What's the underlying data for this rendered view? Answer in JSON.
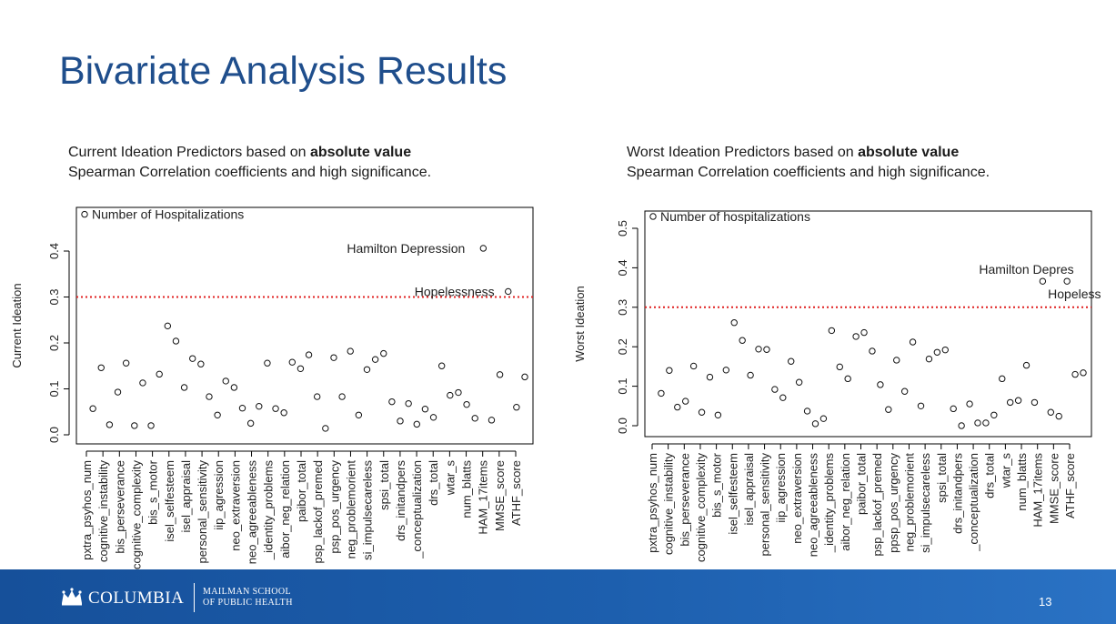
{
  "slide": {
    "title": "Bivariate Analysis Results",
    "page_number": "13"
  },
  "captions": {
    "left": {
      "line1_prefix": "Current Ideation Predictors based on ",
      "line1_bold": "absolute value",
      "line2": "Spearman Correlation coefficients and high significance."
    },
    "right": {
      "line1_prefix": "Worst Ideation Predictors based on ",
      "line1_bold": "absolute value",
      "line2": "Spearman Correlation coefficients and high significance."
    }
  },
  "footer": {
    "brand": "COLUMBIA",
    "school_line1": "MAILMAN SCHOOL",
    "school_line2": "OF PUBLIC HEALTH",
    "crown_icon": "columbia-crown-icon",
    "color_start": "#16509a",
    "color_end": "#2a72c4"
  },
  "colors": {
    "title": "#1f4e8c",
    "threshold_line": "#e02020",
    "points": "#111111"
  },
  "chart_data": [
    {
      "type": "scatter",
      "title": "",
      "xlabel": "",
      "ylabel": "Current Ideation",
      "ylim": [
        0,
        0.48
      ],
      "yticks": [
        "0.0",
        "0.1",
        "0.2",
        "0.3",
        "0.4"
      ],
      "threshold": 0.3,
      "tick_labels": [
        "pxtra_psyhos_num",
        "cognitive_instability",
        "bis_perseverance",
        "cognitive_complexity",
        "bis_s_motor",
        "isel_selfesteem",
        "isel_appraisal",
        "personal_sensitivity",
        "iip_agression",
        "neo_extraversion",
        "neo_agreeableness",
        "_identity_problems",
        "aibor_neg_relation",
        "paibor_total",
        "psp_lackof_premed",
        "psp_pos_urgency",
        "neg_problemorient",
        "si_impulsecareless",
        "spsi_total",
        "drs_initandpers",
        "_conceptualization",
        "drs_total",
        "wtar_s",
        "num_blatts",
        "HAM_17items",
        "MMSE_score",
        "ATHF_score"
      ],
      "values": [
        0.48,
        0.057,
        0.146,
        0.022,
        0.093,
        0.156,
        0.02,
        0.113,
        0.02,
        0.132,
        0.237,
        0.204,
        0.103,
        0.166,
        0.154,
        0.083,
        0.043,
        0.117,
        0.103,
        0.058,
        0.025,
        0.062,
        0.156,
        0.057,
        0.048,
        0.158,
        0.144,
        0.174,
        0.083,
        0.014,
        0.168,
        0.083,
        0.182,
        0.043,
        0.142,
        0.164,
        0.177,
        0.072,
        0.03,
        0.068,
        0.023,
        0.056,
        0.038,
        0.15,
        0.086,
        0.092,
        0.066,
        0.036,
        0.406,
        0.032,
        0.131,
        0.312,
        0.06,
        0.126
      ],
      "annotations": [
        {
          "text": "Number of Hospitalizations",
          "index": 0
        },
        {
          "text": "Hamilton Depression",
          "index": 48
        },
        {
          "text": "Hopelessness",
          "index": 51
        }
      ],
      "grid": false,
      "legend": "none"
    },
    {
      "type": "scatter",
      "title": "",
      "xlabel": "",
      "ylabel": "Worst Ideation",
      "ylim": [
        0,
        0.53
      ],
      "yticks": [
        "0.0",
        "0.1",
        "0.2",
        "0.3",
        "0.4",
        "0.5"
      ],
      "threshold": 0.3,
      "tick_labels": [
        "pxtra_psyhos_num",
        "cognitive_instability",
        "bis_perseverance",
        "cognitive_complexity",
        "bis_s_motor",
        "isel_selfesteem",
        "isel_appraisal",
        "personal_sensitivity",
        "iip_agression",
        "neo_extraversion",
        "neo_agreeableness",
        "_identity_problems",
        "aibor_neg_relation",
        "paibor_total",
        "psp_lackof_premed",
        "ppsp_pos_urgency",
        "neg_problemorient",
        "si_impulsecareless",
        "spsi_total",
        "drs_initandpers",
        "_conceptualization",
        "drs_total",
        "wtar_s",
        "num_blatts",
        "HAM_17items",
        "MMSE_score",
        "ATHF_score"
      ],
      "values": [
        0.53,
        0.082,
        0.14,
        0.047,
        0.062,
        0.151,
        0.034,
        0.123,
        0.027,
        0.141,
        0.261,
        0.216,
        0.128,
        0.194,
        0.193,
        0.092,
        0.071,
        0.163,
        0.11,
        0.037,
        0.005,
        0.018,
        0.241,
        0.149,
        0.119,
        0.226,
        0.236,
        0.189,
        0.104,
        0.041,
        0.166,
        0.087,
        0.212,
        0.05,
        0.169,
        0.186,
        0.192,
        0.043,
        0.0,
        0.055,
        0.007,
        0.007,
        0.027,
        0.119,
        0.059,
        0.064,
        0.153,
        0.059,
        0.366,
        0.034,
        0.024,
        0.366,
        0.13,
        0.134
      ],
      "annotations": [
        {
          "text": "Number of hospitalizations",
          "index": 0
        },
        {
          "text": "Hamilton Depres",
          "index": 48
        },
        {
          "text": "Hopeless",
          "index": 51
        }
      ],
      "grid": false,
      "legend": "none"
    }
  ]
}
